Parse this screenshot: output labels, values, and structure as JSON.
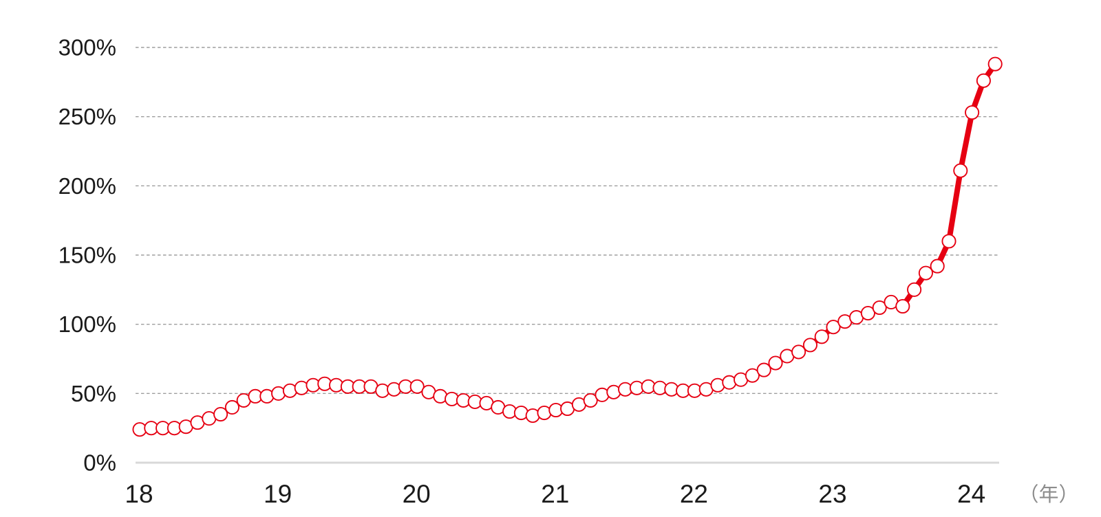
{
  "chart_data": {
    "type": "line",
    "x_unit_label": "（年）",
    "x_tick_labels": [
      "18",
      "19",
      "20",
      "21",
      "22",
      "23",
      "24"
    ],
    "y_tick_labels": [
      "0%",
      "50%",
      "100%",
      "150%",
      "200%",
      "250%",
      "300%"
    ],
    "ylim": [
      0,
      300
    ],
    "y_tick_step": 50,
    "grid": "horizontal-dashed",
    "legend": "none",
    "series": [
      {
        "name": "",
        "frequency": "monthly",
        "start": "2018-01",
        "end": "2024-03",
        "unit": "%",
        "values": [
          24,
          25,
          25,
          25,
          26,
          29,
          32,
          35,
          40,
          45,
          48,
          48,
          50,
          52,
          54,
          56,
          57,
          56,
          55,
          55,
          55,
          52,
          53,
          55,
          55,
          51,
          48,
          46,
          45,
          44,
          43,
          40,
          37,
          36,
          34,
          36,
          38,
          39,
          42,
          45,
          49,
          51,
          53,
          54,
          55,
          54,
          53,
          52,
          52,
          53,
          56,
          58,
          60,
          63,
          67,
          72,
          77,
          80,
          85,
          91,
          98,
          102,
          105,
          108,
          112,
          116,
          113,
          125,
          137,
          142,
          160,
          211,
          253,
          276,
          288
        ]
      }
    ],
    "colors": {
      "line": "#e60012",
      "marker_fill": "#ffffff",
      "marker_stroke": "#e60012",
      "gridline": "#9e9e9e",
      "axis_line": "#d8d8d8",
      "tick_label": "#1a1a1a",
      "unit_label": "#8c8c8c"
    }
  }
}
